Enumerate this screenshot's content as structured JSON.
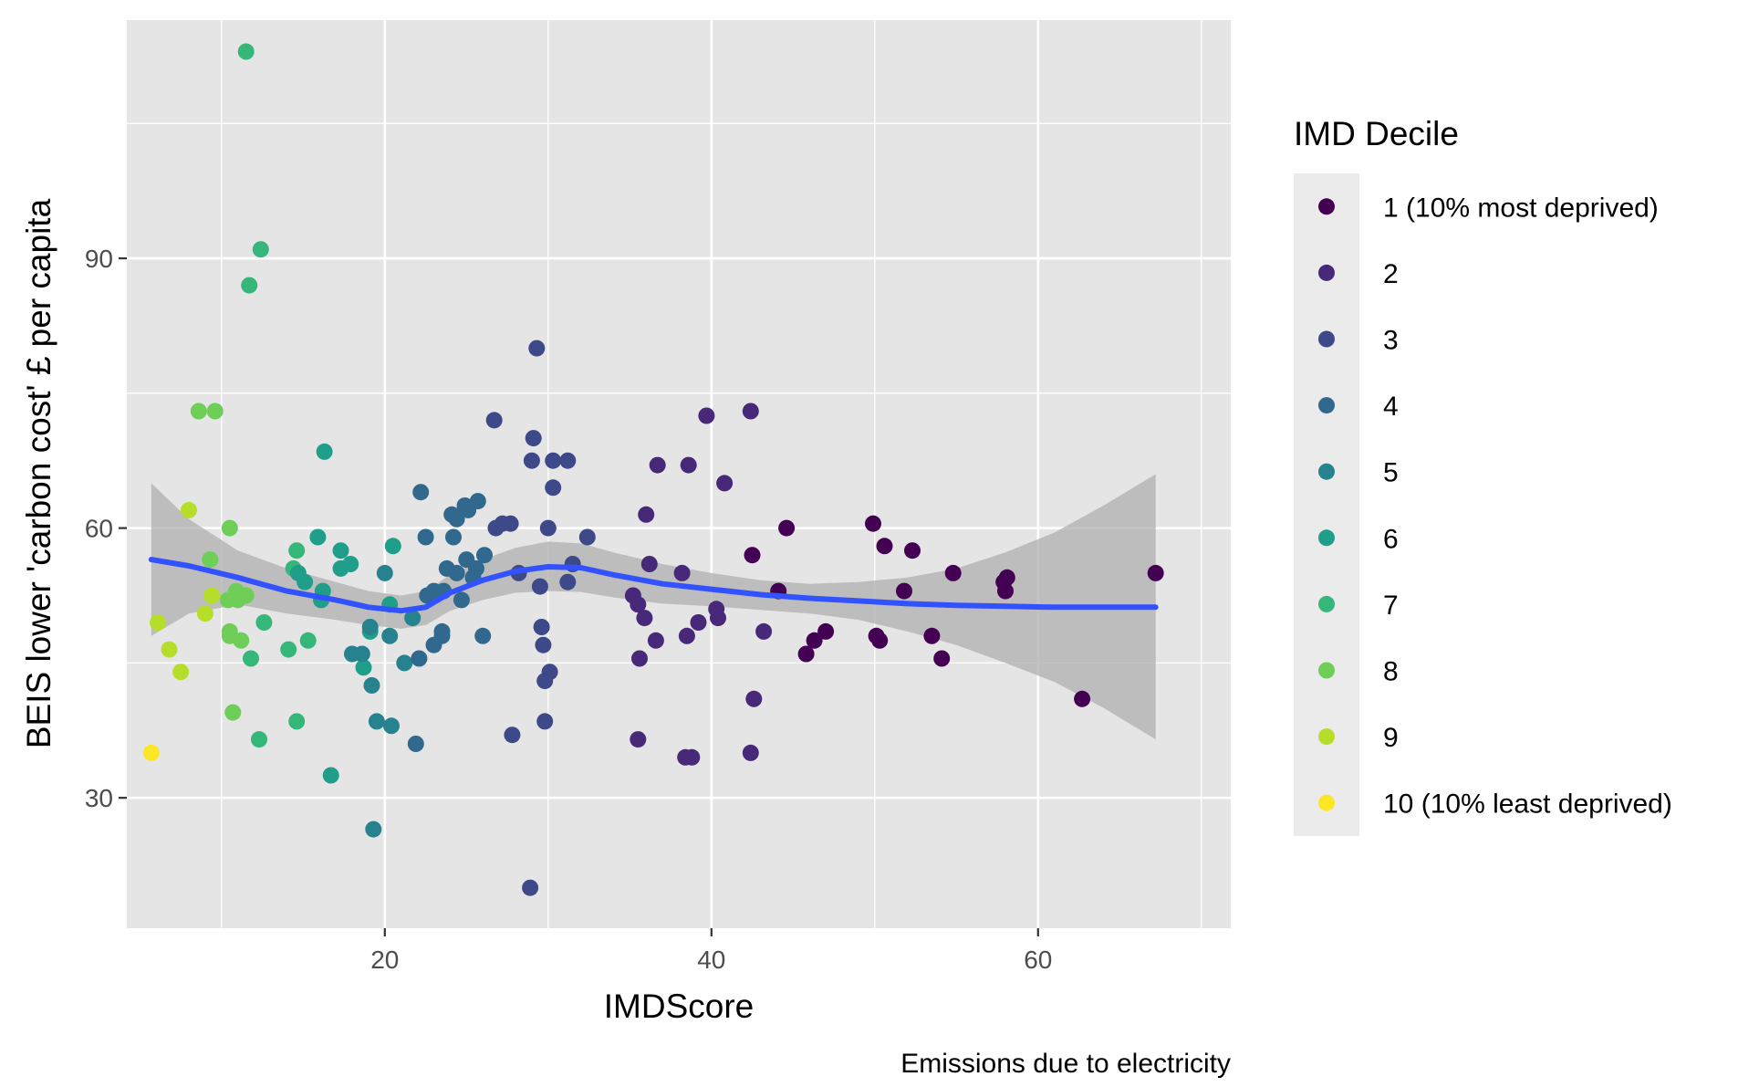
{
  "chart_data": {
    "type": "scatter",
    "xlabel": "IMDScore",
    "ylabel": "BEIS lower 'carbon cost' £ per capita",
    "caption": "Emissions due to electricity",
    "xlim": [
      4.2,
      71.8
    ],
    "ylim": [
      15.5,
      116.5
    ],
    "xticks": [
      20,
      40,
      60
    ],
    "yticks": [
      30,
      60,
      90
    ],
    "grid": true,
    "background_color": "#e5e5e5",
    "legend": {
      "title": "IMD Decile",
      "placement": "right",
      "entries": [
        {
          "label": "1 (10% most deprived)",
          "color": "#440154"
        },
        {
          "label": "2",
          "color": "#482878"
        },
        {
          "label": "3",
          "color": "#3e4989"
        },
        {
          "label": "4",
          "color": "#31688e"
        },
        {
          "label": "5",
          "color": "#26828e"
        },
        {
          "label": "6",
          "color": "#1f9e89"
        },
        {
          "label": "7",
          "color": "#35b779"
        },
        {
          "label": "8",
          "color": "#6ece58"
        },
        {
          "label": "9",
          "color": "#b5de2b"
        },
        {
          "label": "10 (10% least deprived)",
          "color": "#fde725"
        }
      ]
    },
    "points": [
      [
        5.7,
        35.0,
        10
      ],
      [
        6.1,
        49.5,
        9
      ],
      [
        6.8,
        46.5,
        9
      ],
      [
        7.5,
        44.0,
        9
      ],
      [
        8.0,
        62.0,
        9
      ],
      [
        9.0,
        50.5,
        9
      ],
      [
        9.4,
        52.5,
        9
      ],
      [
        8.6,
        73.0,
        8
      ],
      [
        9.6,
        73.0,
        8
      ],
      [
        9.3,
        56.5,
        8
      ],
      [
        10.5,
        60.0,
        8
      ],
      [
        10.5,
        48.5,
        8
      ],
      [
        10.5,
        48.0,
        8
      ],
      [
        10.9,
        53.0,
        8
      ],
      [
        10.7,
        39.5,
        8
      ],
      [
        11.2,
        47.5,
        8
      ],
      [
        11.5,
        52.5,
        8
      ],
      [
        11.0,
        52.0,
        8
      ],
      [
        10.4,
        52.0,
        8
      ],
      [
        11.5,
        113.0,
        7
      ],
      [
        12.4,
        91.0,
        7
      ],
      [
        11.7,
        87.0,
        7
      ],
      [
        12.6,
        49.5,
        7
      ],
      [
        11.8,
        45.5,
        7
      ],
      [
        12.3,
        36.5,
        7
      ],
      [
        14.1,
        46.5,
        7
      ],
      [
        14.6,
        38.5,
        7
      ],
      [
        15.3,
        47.5,
        7
      ],
      [
        14.6,
        57.5,
        7
      ],
      [
        14.4,
        55.5,
        7
      ],
      [
        15.9,
        59.0,
        6
      ],
      [
        16.3,
        68.5,
        6
      ],
      [
        16.2,
        53.0,
        6
      ],
      [
        16.1,
        52.0,
        6
      ],
      [
        16.7,
        32.5,
        6
      ],
      [
        17.3,
        57.5,
        6
      ],
      [
        17.3,
        55.5,
        6
      ],
      [
        15.1,
        54.0,
        6
      ],
      [
        14.7,
        55.0,
        6
      ],
      [
        17.9,
        56.0,
        6
      ],
      [
        18.7,
        44.5,
        6
      ],
      [
        19.1,
        48.5,
        6
      ],
      [
        20.3,
        51.5,
        6
      ],
      [
        20.5,
        58.0,
        6
      ],
      [
        19.3,
        26.5,
        5
      ],
      [
        19.5,
        38.5,
        5
      ],
      [
        20.4,
        38.0,
        5
      ],
      [
        21.2,
        45.0,
        5
      ],
      [
        21.7,
        50.0,
        5
      ],
      [
        19.2,
        42.5,
        5
      ],
      [
        18.6,
        46.0,
        5
      ],
      [
        18.0,
        46.0,
        5
      ],
      [
        19.1,
        49.0,
        5
      ],
      [
        20.0,
        55.0,
        5
      ],
      [
        20.3,
        48.0,
        5
      ],
      [
        21.9,
        36.0,
        4
      ],
      [
        22.1,
        45.5,
        4
      ],
      [
        22.2,
        64.0,
        4
      ],
      [
        22.5,
        59.0,
        4
      ],
      [
        22.6,
        52.5,
        4
      ],
      [
        23.0,
        53.0,
        4
      ],
      [
        23.5,
        48.0,
        4
      ],
      [
        23.6,
        53.0,
        4
      ],
      [
        23.8,
        55.5,
        4
      ],
      [
        24.2,
        59.0,
        4
      ],
      [
        24.1,
        61.5,
        4
      ],
      [
        24.4,
        61.0,
        4
      ],
      [
        24.4,
        55.0,
        4
      ],
      [
        24.9,
        62.5,
        4
      ],
      [
        25.1,
        62.0,
        4
      ],
      [
        25.4,
        54.5,
        4
      ],
      [
        25.6,
        55.5,
        4
      ],
      [
        26.1,
        57.0,
        4
      ],
      [
        25.0,
        56.5,
        4
      ],
      [
        23.5,
        48.5,
        4
      ],
      [
        23.0,
        47.0,
        4
      ],
      [
        24.7,
        52.0,
        4
      ],
      [
        26.0,
        48.0,
        4
      ],
      [
        25.7,
        63.0,
        4
      ],
      [
        26.7,
        72.0,
        3
      ],
      [
        26.8,
        60.0,
        3
      ],
      [
        27.2,
        60.5,
        3
      ],
      [
        27.7,
        60.5,
        3
      ],
      [
        27.8,
        37.0,
        3
      ],
      [
        28.2,
        55.0,
        3
      ],
      [
        28.9,
        20.0,
        3
      ],
      [
        29.0,
        67.5,
        3
      ],
      [
        29.1,
        70.0,
        3
      ],
      [
        29.3,
        80.0,
        3
      ],
      [
        29.5,
        53.5,
        3
      ],
      [
        29.6,
        49.0,
        3
      ],
      [
        29.7,
        47.0,
        3
      ],
      [
        29.8,
        43.0,
        3
      ],
      [
        29.8,
        38.5,
        3
      ],
      [
        30.0,
        60.0,
        3
      ],
      [
        30.1,
        44.0,
        3
      ],
      [
        30.3,
        67.5,
        3
      ],
      [
        30.3,
        64.5,
        3
      ],
      [
        31.2,
        67.5,
        3
      ],
      [
        31.2,
        54.0,
        3
      ],
      [
        31.5,
        56.0,
        3
      ],
      [
        32.4,
        59.0,
        3
      ],
      [
        35.2,
        52.5,
        2
      ],
      [
        35.5,
        51.5,
        2
      ],
      [
        35.6,
        45.5,
        2
      ],
      [
        35.5,
        36.5,
        2
      ],
      [
        35.9,
        50.0,
        2
      ],
      [
        36.0,
        61.5,
        2
      ],
      [
        36.2,
        56.0,
        2
      ],
      [
        36.6,
        47.5,
        2
      ],
      [
        36.7,
        67.0,
        2
      ],
      [
        38.2,
        55.0,
        2
      ],
      [
        38.4,
        34.5,
        2
      ],
      [
        38.5,
        48.0,
        2
      ],
      [
        38.6,
        67.0,
        2
      ],
      [
        38.8,
        34.5,
        2
      ],
      [
        39.2,
        49.5,
        2
      ],
      [
        39.7,
        72.5,
        2
      ],
      [
        40.3,
        51.0,
        2
      ],
      [
        40.4,
        50.0,
        2
      ],
      [
        40.8,
        65.0,
        2
      ],
      [
        42.4,
        73.0,
        2
      ],
      [
        42.6,
        41.0,
        2
      ],
      [
        43.2,
        48.5,
        2
      ],
      [
        42.4,
        35.0,
        2
      ],
      [
        42.5,
        57.0,
        1
      ],
      [
        44.1,
        53.0,
        1
      ],
      [
        44.6,
        60.0,
        1
      ],
      [
        45.8,
        46.0,
        1
      ],
      [
        46.3,
        47.5,
        1
      ],
      [
        47.0,
        48.5,
        1
      ],
      [
        49.9,
        60.5,
        1
      ],
      [
        50.1,
        48.0,
        1
      ],
      [
        50.3,
        47.5,
        1
      ],
      [
        50.6,
        58.0,
        1
      ],
      [
        51.8,
        53.0,
        1
      ],
      [
        52.3,
        57.5,
        1
      ],
      [
        53.5,
        48.0,
        1
      ],
      [
        54.1,
        45.5,
        1
      ],
      [
        54.8,
        55.0,
        1
      ],
      [
        57.9,
        54.0,
        1
      ],
      [
        58.0,
        53.0,
        1
      ],
      [
        58.1,
        54.5,
        1
      ],
      [
        62.7,
        41.0,
        1
      ],
      [
        67.2,
        55.0,
        1
      ]
    ],
    "smooth_line": [
      [
        5.7,
        56.5
      ],
      [
        8,
        55.8
      ],
      [
        11,
        54.5
      ],
      [
        14,
        53.0
      ],
      [
        17,
        52.0
      ],
      [
        19,
        51.2
      ],
      [
        21,
        50.8
      ],
      [
        22.5,
        51.2
      ],
      [
        24,
        52.8
      ],
      [
        26,
        54.2
      ],
      [
        28,
        55.2
      ],
      [
        30,
        55.7
      ],
      [
        32,
        55.6
      ],
      [
        34,
        54.8
      ],
      [
        37,
        53.8
      ],
      [
        40,
        53.2
      ],
      [
        43,
        52.6
      ],
      [
        46,
        52.2
      ],
      [
        49,
        51.9
      ],
      [
        52,
        51.6
      ],
      [
        55,
        51.4
      ],
      [
        58,
        51.3
      ],
      [
        61,
        51.2
      ],
      [
        64,
        51.2
      ],
      [
        67.2,
        51.2
      ]
    ],
    "ci_upper": [
      [
        5.7,
        65.0
      ],
      [
        8,
        61.0
      ],
      [
        11,
        57.5
      ],
      [
        14,
        55.5
      ],
      [
        17,
        54.0
      ],
      [
        19,
        53.0
      ],
      [
        21,
        52.5
      ],
      [
        22.5,
        53.0
      ],
      [
        24,
        54.8
      ],
      [
        26,
        56.5
      ],
      [
        28,
        57.8
      ],
      [
        30,
        58.5
      ],
      [
        32,
        58.3
      ],
      [
        34,
        57.3
      ],
      [
        37,
        56.0
      ],
      [
        40,
        55.0
      ],
      [
        43,
        54.2
      ],
      [
        46,
        53.8
      ],
      [
        49,
        54.0
      ],
      [
        52,
        54.5
      ],
      [
        55,
        55.5
      ],
      [
        58,
        57.3
      ],
      [
        61,
        59.5
      ],
      [
        64,
        62.5
      ],
      [
        67.2,
        66.0
      ]
    ],
    "ci_lower": [
      [
        5.7,
        48.0
      ],
      [
        8,
        50.5
      ],
      [
        11,
        51.5
      ],
      [
        14,
        50.5
      ],
      [
        17,
        49.8
      ],
      [
        19,
        49.2
      ],
      [
        21,
        48.8
      ],
      [
        22.5,
        49.2
      ],
      [
        24,
        50.8
      ],
      [
        26,
        52.0
      ],
      [
        28,
        52.8
      ],
      [
        30,
        53.0
      ],
      [
        32,
        52.9
      ],
      [
        34,
        52.3
      ],
      [
        37,
        51.6
      ],
      [
        40,
        51.3
      ],
      [
        43,
        50.9
      ],
      [
        46,
        50.5
      ],
      [
        49,
        49.8
      ],
      [
        52,
        48.5
      ],
      [
        55,
        47.0
      ],
      [
        58,
        45.0
      ],
      [
        61,
        42.9
      ],
      [
        64,
        40.0
      ],
      [
        67.2,
        36.5
      ]
    ],
    "smooth_color": "#3352ff",
    "ci_color": "#b3b3b3"
  }
}
